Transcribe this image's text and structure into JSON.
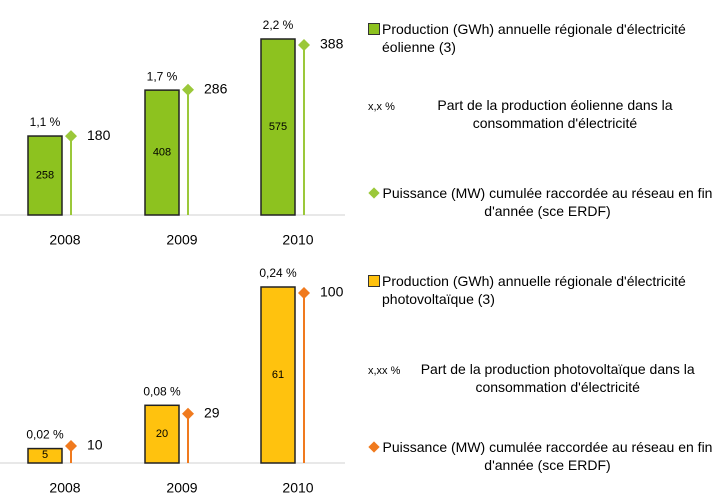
{
  "chart_data": [
    {
      "type": "bar",
      "categories": [
        "2008",
        "2009",
        "2010"
      ],
      "series": [
        {
          "name": "Production (GWh) annuelle régionale d'électricité éolienne (3)",
          "kind": "bar",
          "color": "#8dc21f",
          "values": [
            258,
            408,
            575
          ]
        },
        {
          "name": "Part de la production éolienne dans la consommation d'électricité",
          "kind": "share",
          "marker": "x,x %",
          "values": [
            1.1,
            1.7,
            2.2
          ],
          "value_labels": [
            "1,1 %",
            "1,7 %",
            "2,2 %"
          ]
        },
        {
          "name": "Puissance (MW) cumulée raccordée au réseau en fin d'année (sce ERDF)",
          "kind": "stem",
          "color": "#9bc83a",
          "values": [
            180,
            286,
            388
          ]
        }
      ]
    },
    {
      "type": "bar",
      "categories": [
        "2008",
        "2009",
        "2010"
      ],
      "series": [
        {
          "name": "Production (GWh) annuelle régionale d'électricité photovoltaïque (3)",
          "kind": "bar",
          "color": "#ffc20e",
          "values": [
            5,
            20,
            61
          ]
        },
        {
          "name": "Part de la production photovoltaïque dans la consommation d'électricité",
          "kind": "share",
          "marker": "x,xx %",
          "values": [
            0.02,
            0.08,
            0.24
          ],
          "value_labels": [
            "0,02 %",
            "0,08 %",
            "0,24 %"
          ]
        },
        {
          "name": "Puissance (MW) cumulée raccordée au réseau en fin d'année (sce ERDF)",
          "kind": "stem",
          "color": "#f07a1e",
          "values": [
            10,
            29,
            100
          ]
        }
      ]
    }
  ]
}
